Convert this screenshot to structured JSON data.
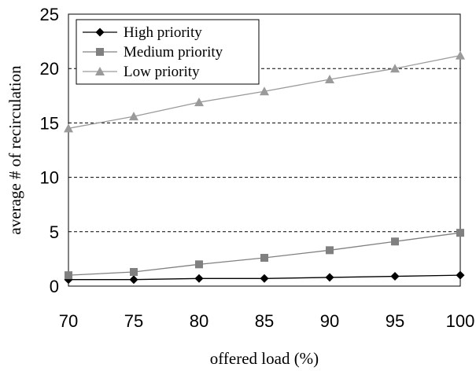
{
  "chart_data": {
    "type": "line",
    "title": "",
    "xlabel": "offered load (%)",
    "ylabel": "average # of recirculation",
    "x": [
      70,
      75,
      80,
      85,
      90,
      95,
      100
    ],
    "xlim": [
      70,
      100
    ],
    "ylim": [
      0,
      25
    ],
    "xticks": [
      "70",
      "75",
      "80",
      "85",
      "90",
      "95",
      "100"
    ],
    "yticks": [
      "0",
      "5",
      "10",
      "15",
      "20",
      "25"
    ],
    "grid": "dashed horizontal",
    "legend_position": "top-left",
    "series": [
      {
        "name": "High priority",
        "marker": "diamond",
        "color": "#000000",
        "values": [
          0.6,
          0.6,
          0.7,
          0.7,
          0.8,
          0.9,
          1.0
        ]
      },
      {
        "name": "Medium priority",
        "marker": "square",
        "color": "#808080",
        "values": [
          1.0,
          1.3,
          2.0,
          2.6,
          3.3,
          4.1,
          4.9
        ]
      },
      {
        "name": "Low priority",
        "marker": "triangle",
        "color": "#9a9a9a",
        "values": [
          14.5,
          15.6,
          16.9,
          17.9,
          19.0,
          20.0,
          21.2
        ]
      }
    ]
  }
}
